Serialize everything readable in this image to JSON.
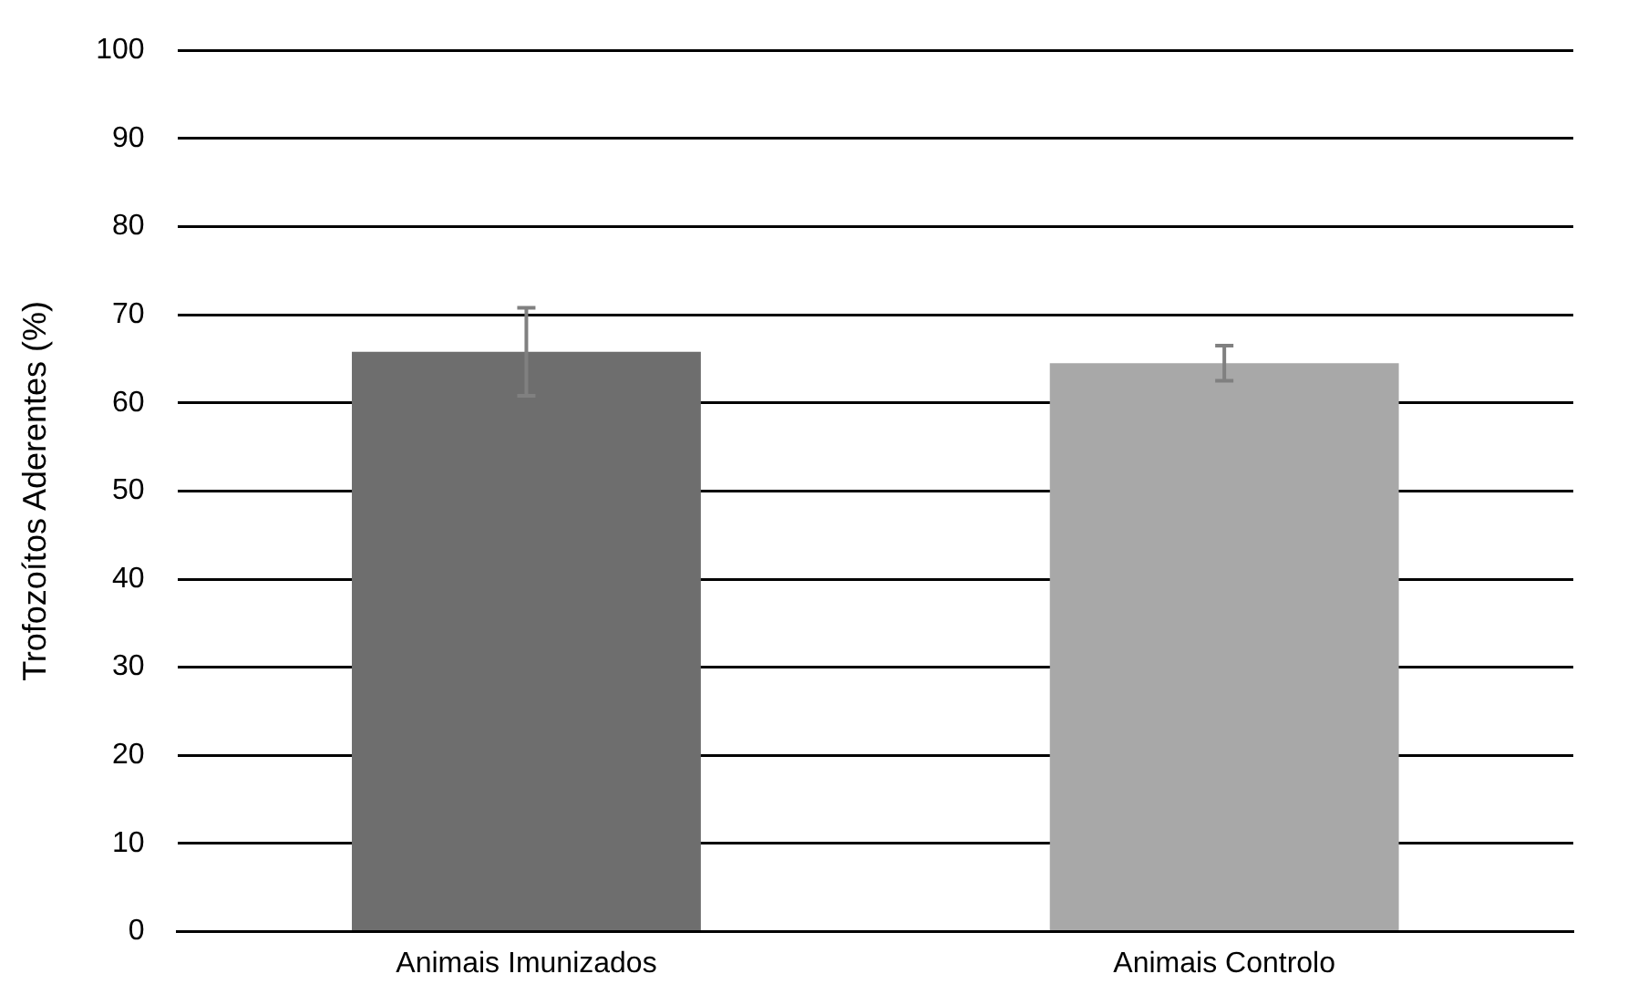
{
  "chart_data": {
    "type": "bar",
    "ylabel": "Trofozoítos Aderentes (%)",
    "categories": [
      "Animais Imunizados",
      "Animais Controlo"
    ],
    "values": [
      65.8,
      64.5
    ],
    "errors": [
      5,
      2
    ],
    "colors": [
      "#6e6e6e",
      "#a8a8a8"
    ],
    "ylim": [
      0,
      100
    ],
    "yticks": [
      0,
      10,
      20,
      30,
      40,
      50,
      60,
      70,
      80,
      90,
      100
    ],
    "grid": "y",
    "legend": false
  }
}
